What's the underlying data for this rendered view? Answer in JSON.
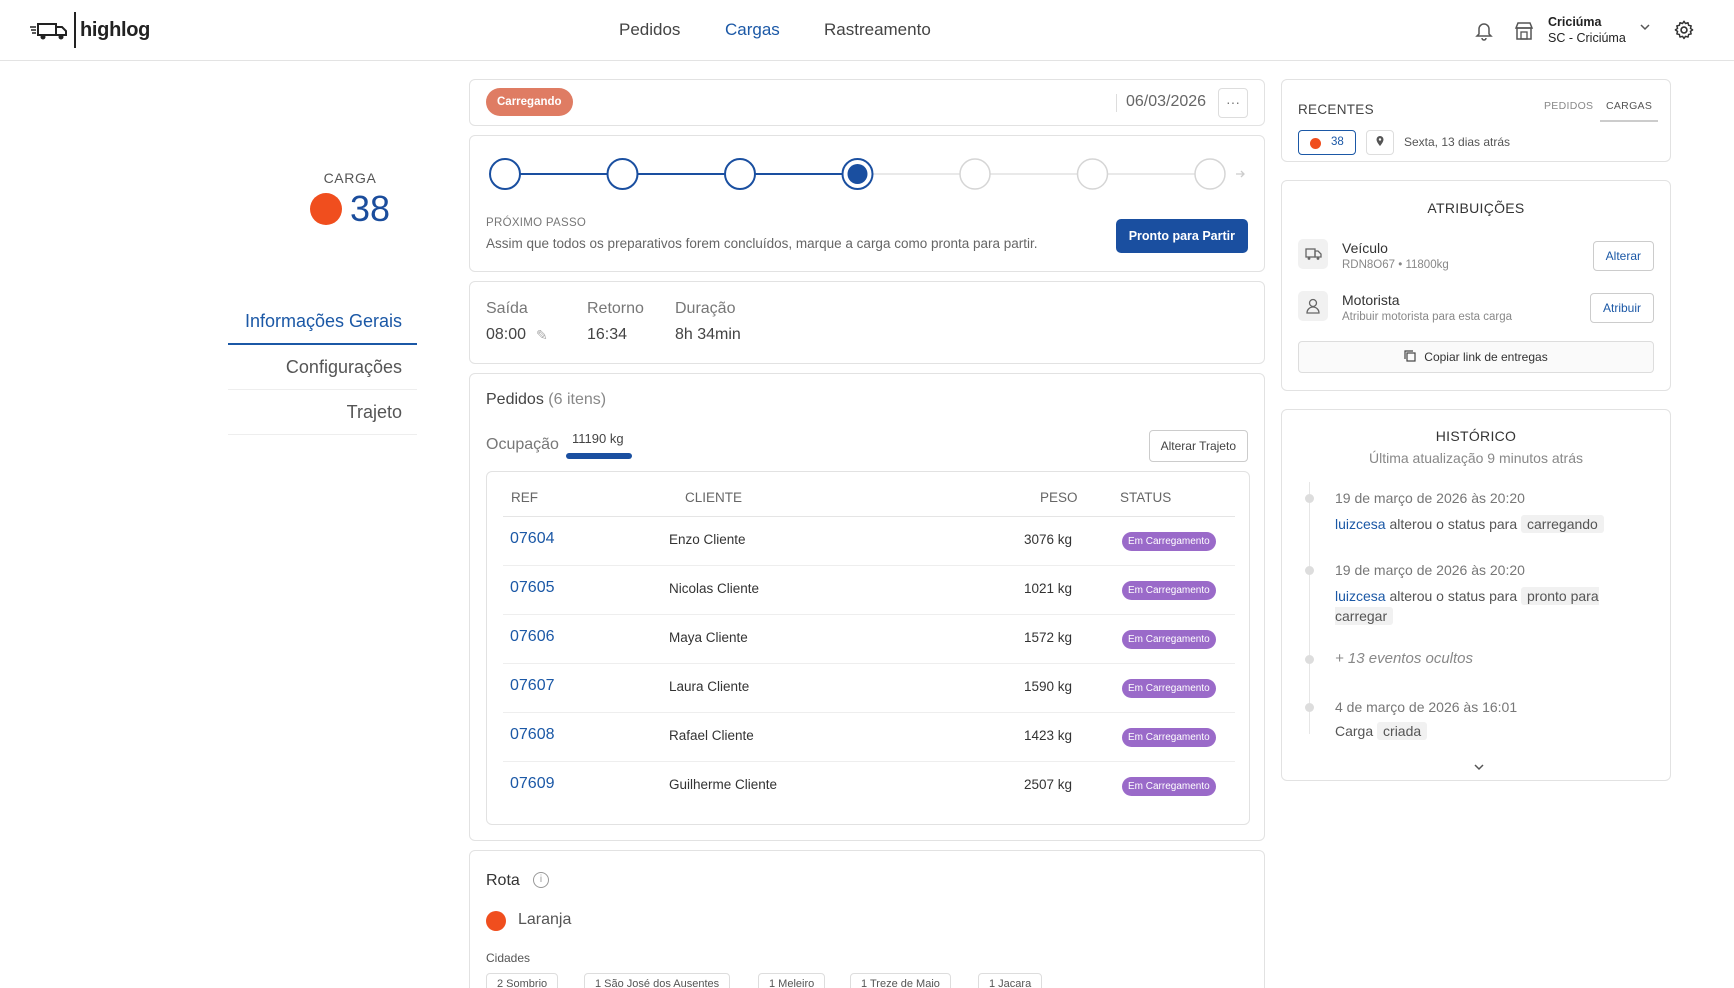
{
  "brand": {
    "name": "highlog"
  },
  "nav": {
    "items": [
      "Pedidos",
      "Cargas",
      "Rastreamento"
    ],
    "active": "Cargas"
  },
  "location": {
    "city": "Criciúma",
    "region": "SC - Criciúma"
  },
  "carga": {
    "label": "CARGA",
    "number": "38",
    "color": "#f04e1e"
  },
  "side_nav": {
    "items": [
      "Informações Gerais",
      "Configurações",
      "Trajeto"
    ],
    "active": "Informações Gerais"
  },
  "status": {
    "label": "Carregando",
    "color": "#df7c63",
    "date": "06/03/2026",
    "more": "···"
  },
  "progress": {
    "steps_total": 7,
    "current_step": 4,
    "next_label": "PRÓXIMO PASSO",
    "next_desc": "Assim que todos os preparativos forem concluídos, marque a carga como pronta para partir.",
    "button": "Pronto para Partir"
  },
  "times": {
    "saida_label": "Saída",
    "saida": "08:00",
    "retorno_label": "Retorno",
    "retorno": "16:34",
    "duracao_label": "Duração",
    "duracao": "8h 34min"
  },
  "pedidos": {
    "title": "Pedidos",
    "count": "(6 itens)",
    "ocupacao_label": "Ocupação",
    "ocupacao_value": "11190 kg",
    "alterar_trajeto": "Alterar Trajeto",
    "columns": [
      "REF",
      "CLIENTE",
      "PESO",
      "STATUS"
    ],
    "rows": [
      {
        "ref": "07604",
        "cliente": "Enzo Cliente",
        "peso": "3076 kg",
        "status": "Em Carregamento"
      },
      {
        "ref": "07605",
        "cliente": "Nicolas Cliente",
        "peso": "1021 kg",
        "status": "Em Carregamento"
      },
      {
        "ref": "07606",
        "cliente": "Maya Cliente",
        "peso": "1572 kg",
        "status": "Em Carregamento"
      },
      {
        "ref": "07607",
        "cliente": "Laura Cliente",
        "peso": "1590 kg",
        "status": "Em Carregamento"
      },
      {
        "ref": "07608",
        "cliente": "Rafael Cliente",
        "peso": "1423 kg",
        "status": "Em Carregamento"
      },
      {
        "ref": "07609",
        "cliente": "Guilherme Cliente",
        "peso": "2507 kg",
        "status": "Em Carregamento"
      }
    ]
  },
  "rota": {
    "title": "Rota",
    "name": "Laranja",
    "color": "#f04e1e",
    "cidades_label": "Cidades",
    "cities": [
      "2 Sombrio",
      "1 São José dos Ausentes",
      "1 Meleiro",
      "1 Treze de Maio",
      "1 Jacara"
    ]
  },
  "recentes": {
    "title": "RECENTES",
    "tabs": [
      "PEDIDOS",
      "CARGAS"
    ],
    "active_tab": "CARGAS",
    "pill": "38",
    "time": "Sexta, 13 dias atrás"
  },
  "atribuicoes": {
    "title": "ATRIBUIÇÕES",
    "veiculo_label": "Veículo",
    "veiculo_sub": "RDN8O67 • 11800kg",
    "veiculo_btn": "Alterar",
    "motorista_label": "Motorista",
    "motorista_sub": "Atribuir motorista para esta carga",
    "motorista_btn": "Atribuir",
    "copy_link": "Copiar link de entregas"
  },
  "historico": {
    "title": "HISTÓRICO",
    "subtitle": "Última atualização 9 minutos atrás",
    "events": [
      {
        "date": "19 de março de 2026 às 20:20",
        "user": "luizcesa",
        "action": "alterou o status para",
        "tag": "carregando"
      },
      {
        "date": "19 de março de 2026 às 20:20",
        "user": "luizcesa",
        "action": "alterou o status para",
        "tag": "pronto para carregar"
      }
    ],
    "hidden": "+ 13 eventos ocultos",
    "created": {
      "date": "4 de março de 2026 às 16:01",
      "text": "Carga",
      "tag": "criada"
    }
  }
}
